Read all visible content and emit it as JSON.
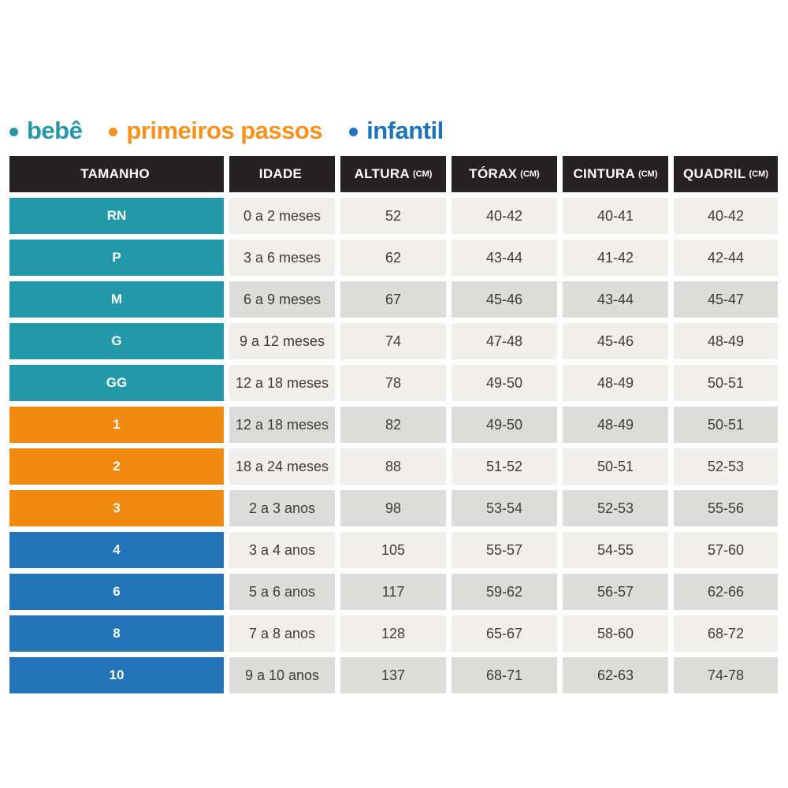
{
  "legend": {
    "items": [
      {
        "label": "bebê",
        "color": "#2796A7"
      },
      {
        "label": "primeiros passos",
        "color": "#F6921E"
      },
      {
        "label": "infantil",
        "color": "#1F73BB"
      }
    ]
  },
  "colors": {
    "bebe": "#2398A8",
    "primeiros_passos": "#F18A10",
    "infantil": "#2273B8",
    "header_bg": "#262223",
    "cell_light": "#F0EFEB",
    "cell_dark": "#DCDCDA",
    "data_text": "#3C3C3C"
  },
  "table": {
    "headers": [
      {
        "label": "TAMANHO",
        "unit": ""
      },
      {
        "label": "IDADE",
        "unit": ""
      },
      {
        "label": "ALTURA",
        "unit": "(CM)"
      },
      {
        "label": "TÓRAX",
        "unit": "(CM)"
      },
      {
        "label": "CINTURA",
        "unit": "(CM)"
      },
      {
        "label": "QUADRIL",
        "unit": "(CM)"
      }
    ],
    "rows": [
      {
        "size": "RN",
        "category": "bebe",
        "age": "0 a 2 meses",
        "height": "52",
        "chest": "40-42",
        "waist": "40-41",
        "hip": "40-42",
        "shade": "light"
      },
      {
        "size": "P",
        "category": "bebe",
        "age": "3 a 6 meses",
        "height": "62",
        "chest": "43-44",
        "waist": "41-42",
        "hip": "42-44",
        "shade": "light"
      },
      {
        "size": "M",
        "category": "bebe",
        "age": "6 a 9 meses",
        "height": "67",
        "chest": "45-46",
        "waist": "43-44",
        "hip": "45-47",
        "shade": "dark"
      },
      {
        "size": "G",
        "category": "bebe",
        "age": "9 a 12 meses",
        "height": "74",
        "chest": "47-48",
        "waist": "45-46",
        "hip": "48-49",
        "shade": "light"
      },
      {
        "size": "GG",
        "category": "bebe",
        "age": "12 a 18 meses",
        "height": "78",
        "chest": "49-50",
        "waist": "48-49",
        "hip": "50-51",
        "shade": "light"
      },
      {
        "size": "1",
        "category": "primeiros_passos",
        "age": "12 a 18 meses",
        "height": "82",
        "chest": "49-50",
        "waist": "48-49",
        "hip": "50-51",
        "shade": "dark"
      },
      {
        "size": "2",
        "category": "primeiros_passos",
        "age": "18 a 24 meses",
        "height": "88",
        "chest": "51-52",
        "waist": "50-51",
        "hip": "52-53",
        "shade": "light"
      },
      {
        "size": "3",
        "category": "primeiros_passos",
        "age": "2 a 3 anos",
        "height": "98",
        "chest": "53-54",
        "waist": "52-53",
        "hip": "55-56",
        "shade": "dark"
      },
      {
        "size": "4",
        "category": "infantil",
        "age": "3 a 4 anos",
        "height": "105",
        "chest": "55-57",
        "waist": "54-55",
        "hip": "57-60",
        "shade": "light"
      },
      {
        "size": "6",
        "category": "infantil",
        "age": "5 a 6 anos",
        "height": "117",
        "chest": "59-62",
        "waist": "56-57",
        "hip": "62-66",
        "shade": "dark"
      },
      {
        "size": "8",
        "category": "infantil",
        "age": "7 a 8 anos",
        "height": "128",
        "chest": "65-67",
        "waist": "58-60",
        "hip": "68-72",
        "shade": "light"
      },
      {
        "size": "10",
        "category": "infantil",
        "age": "9 a 10 anos",
        "height": "137",
        "chest": "68-71",
        "waist": "62-63",
        "hip": "74-78",
        "shade": "dark"
      }
    ]
  },
  "chart_data": {
    "type": "table",
    "title": "",
    "legend_entries": [
      "bebê",
      "primeiros passos",
      "infantil"
    ],
    "columns": [
      "TAMANHO",
      "IDADE",
      "ALTURA (CM)",
      "TÓRAX (CM)",
      "CINTURA (CM)",
      "QUADRIL (CM)"
    ],
    "rows": [
      [
        "RN",
        "0 a 2 meses",
        "52",
        "40-42",
        "40-41",
        "40-42"
      ],
      [
        "P",
        "3 a 6 meses",
        "62",
        "43-44",
        "41-42",
        "42-44"
      ],
      [
        "M",
        "6 a 9 meses",
        "67",
        "45-46",
        "43-44",
        "45-47"
      ],
      [
        "G",
        "9 a 12 meses",
        "74",
        "47-48",
        "45-46",
        "48-49"
      ],
      [
        "GG",
        "12 a 18 meses",
        "78",
        "49-50",
        "48-49",
        "50-51"
      ],
      [
        "1",
        "12 a 18 meses",
        "82",
        "49-50",
        "48-49",
        "50-51"
      ],
      [
        "2",
        "18 a 24 meses",
        "88",
        "51-52",
        "50-51",
        "52-53"
      ],
      [
        "3",
        "2 a 3 anos",
        "98",
        "53-54",
        "52-53",
        "55-56"
      ],
      [
        "4",
        "3 a 4 anos",
        "105",
        "55-57",
        "54-55",
        "57-60"
      ],
      [
        "6",
        "5 a 6 anos",
        "117",
        "59-62",
        "56-57",
        "62-66"
      ],
      [
        "8",
        "7 a 8 anos",
        "128",
        "65-67",
        "58-60",
        "68-72"
      ],
      [
        "10",
        "9 a 10 anos",
        "137",
        "68-71",
        "62-63",
        "74-78"
      ]
    ],
    "row_groups": [
      {
        "label": "bebê",
        "sizes": [
          "RN",
          "P",
          "M",
          "G",
          "GG"
        ]
      },
      {
        "label": "primeiros passos",
        "sizes": [
          "1",
          "2",
          "3"
        ]
      },
      {
        "label": "infantil",
        "sizes": [
          "4",
          "6",
          "8",
          "10"
        ]
      }
    ]
  }
}
